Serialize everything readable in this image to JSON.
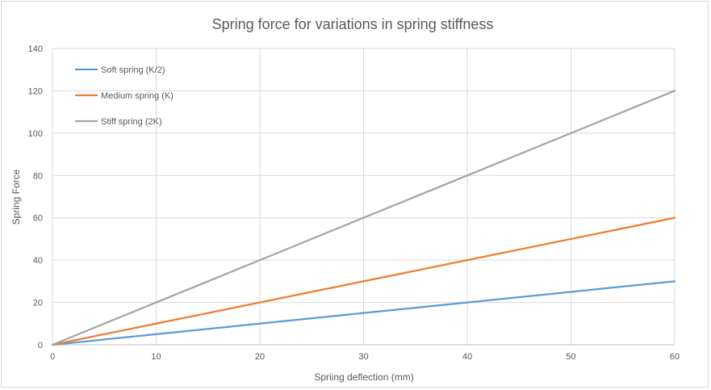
{
  "chart_data": {
    "type": "line",
    "title": "Spring force for variations in spring stiffness",
    "xlabel": "Spriing deflection (mm)",
    "ylabel": "Spring Force",
    "xlim": [
      0,
      60
    ],
    "ylim": [
      0,
      140
    ],
    "x_ticks": [
      "0",
      "10",
      "20",
      "30",
      "40",
      "50",
      "60"
    ],
    "y_ticks": [
      "0",
      "20",
      "40",
      "60",
      "80",
      "100",
      "120",
      "140"
    ],
    "grid": true,
    "legend_position": "top-left",
    "x": [
      0,
      10,
      20,
      30,
      40,
      50,
      60
    ],
    "series": [
      {
        "name": "Soft spring (K/2)",
        "color": "#5b9bd5",
        "values": [
          0,
          5,
          10,
          15,
          20,
          25,
          30
        ]
      },
      {
        "name": "Medium spring (K)",
        "color": "#ed7d31",
        "values": [
          0,
          10,
          20,
          30,
          40,
          50,
          60
        ]
      },
      {
        "name": "Stiff spring (2K)",
        "color": "#a5a5a5",
        "values": [
          0,
          20,
          40,
          60,
          80,
          100,
          120
        ]
      }
    ]
  }
}
